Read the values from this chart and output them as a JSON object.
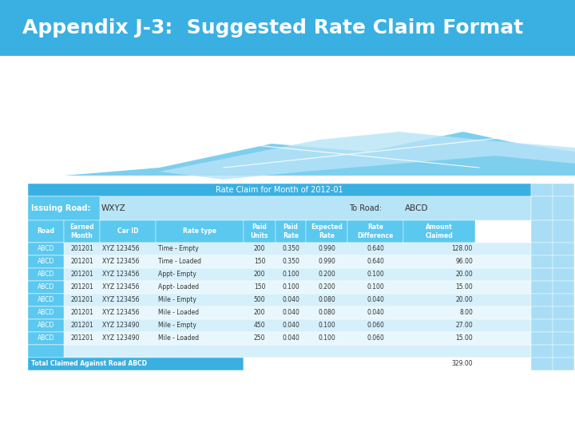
{
  "title": "Appendix J-3:  Suggested Rate Claim Format",
  "title_bg": "#3ab0e2",
  "title_color": "#ffffff",
  "table_header_title": "Rate Claim for Month of 2012-01",
  "issuing_road_label": "Issuing Road:",
  "issuing_road_value": "WXYZ",
  "to_road_label": "To Road:",
  "to_road_value": "ABCD",
  "col_headers": [
    "Road",
    "Earned\nMonth",
    "Car ID",
    "Rate type",
    "Paid\nUnits",
    "Paid\nRate",
    "Expected\nRate",
    "Rate\nDifference",
    "Amount\nClaimed"
  ],
  "rows": [
    [
      "ABCD",
      "201201",
      "XYZ 123456",
      "Time - Empty",
      "200",
      "0.350",
      "0.990",
      "0.640",
      "128.00"
    ],
    [
      "ABCD",
      "201201",
      "XYZ 123456",
      "Time - Loaded",
      "150",
      "0.350",
      "0.990",
      "0.640",
      "96.00"
    ],
    [
      "ABCD",
      "201201",
      "XYZ 123456",
      "Appt- Empty",
      "200",
      "0.100",
      "0.200",
      "0.100",
      "20.00"
    ],
    [
      "ABCD",
      "201201",
      "XYZ 123456",
      "Appt- Loaded",
      "150",
      "0.100",
      "0.200",
      "0.100",
      "15.00"
    ],
    [
      "ABCD",
      "201201",
      "XYZ 123456",
      "Mile - Empty",
      "500",
      "0.040",
      "0.080",
      "0.040",
      "20.00"
    ],
    [
      "ABCD",
      "201201",
      "XYZ 123456",
      "Mile - Loaded",
      "200",
      "0.040",
      "0.080",
      "0.040",
      "8.00"
    ],
    [
      "ABCD",
      "201201",
      "XYZ 123490",
      "Mile - Empty",
      "450",
      "0.040",
      "0.100",
      "0.060",
      "27.00"
    ],
    [
      "ABCD",
      "201201",
      "XYZ 123490",
      "Mile - Loaded",
      "250",
      "0.040",
      "0.100",
      "0.060",
      "15.00"
    ]
  ],
  "total_label": "Total Claimed Against Road ABCD",
  "total_value": "329.00",
  "header_bg": "#3ab0e2",
  "header_text": "#ffffff",
  "issuing_row_left_bg": "#5bc8ef",
  "issuing_row_left_text": "#ffffff",
  "col_header_bg": "#5bc8ef",
  "col_header_text": "#ffffff",
  "road_cell_bg": "#5bc8ef",
  "road_cell_text": "#ffffff",
  "row_bg_light": "#d6f0fb",
  "row_bg_white": "#e8f7fd",
  "row_text": "#333333",
  "total_bg": "#3ab0e2",
  "total_text": "#ffffff",
  "extra_col_bg": "#a8ddf5",
  "bg_color": "#ffffff",
  "wave_bg": "#7ecfee",
  "wave_white": "#ffffff",
  "wave_light": "#b8e4f7"
}
